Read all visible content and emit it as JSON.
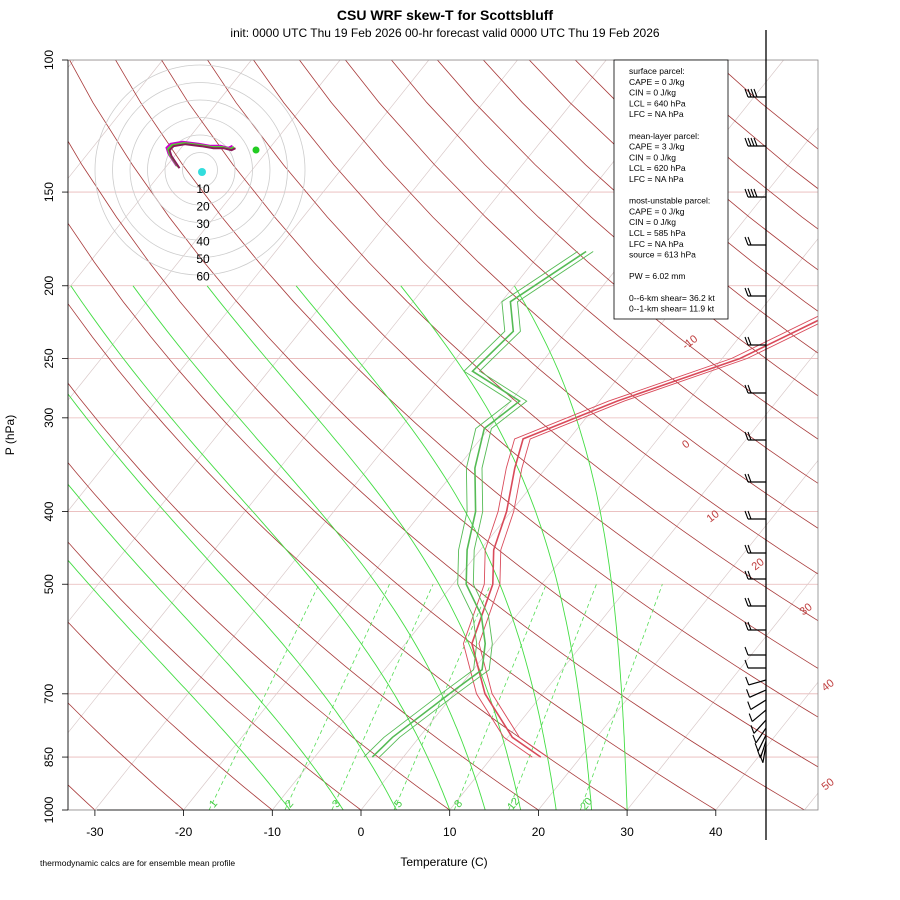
{
  "header": {
    "title": "CSU WRF skew-T for Scottsbluff",
    "subtitle": "init: 0000 UTC Thu 19 Feb 2026     00-hr forecast valid 0000 UTC Thu 19 Feb 2026"
  },
  "axes": {
    "ylabel": "P (hPa)",
    "xlabel": "Temperature (C)",
    "footnote": "thermodynamic calcs are for ensemble mean profile"
  },
  "info_box": {
    "lines": [
      "surface parcel:",
      "CAPE = 0 J/kg",
      "CIN = 0 J/kg",
      "LCL = 640 hPa",
      "LFC = NA hPa",
      "",
      "mean-layer parcel:",
      "CAPE = 3 J/kg",
      "CIN = 0 J/kg",
      "LCL = 620 hPa",
      "LFC = NA hPa",
      "",
      "most-unstable parcel:",
      "CAPE = 0 J/kg",
      "CIN = 0 J/kg",
      "LCL = 585 hPa",
      "LFC = NA hPa",
      "source = 613 hPa",
      "",
      "PW =  6.02 mm",
      "",
      "0--6-km shear= 36.2 kt",
      "0--1-km shear= 11.9 kt"
    ]
  },
  "chart_data": {
    "type": "line",
    "title": "CSU WRF skew-T for Scottsbluff",
    "xlabel": "Temperature (C)",
    "ylabel": "P (hPa)",
    "ylog": true,
    "ylim": [
      1000,
      100
    ],
    "xlim": [
      -33,
      45
    ],
    "xticks": [
      -30,
      -20,
      -10,
      0,
      10,
      20,
      30,
      40
    ],
    "yticks": [
      1000,
      850,
      700,
      500,
      400,
      300,
      250,
      200,
      150,
      100
    ],
    "isotherm_labels": [
      "-10",
      "0",
      "10",
      "20",
      "30",
      "40",
      "50"
    ],
    "mixing_ratio_labels": [
      "1",
      "2",
      "3",
      "5",
      "8",
      "12",
      "20"
    ],
    "hodograph_rings": [
      "10",
      "20",
      "30",
      "40",
      "50",
      "60"
    ],
    "series": [
      {
        "color": "#d94a5a",
        "role": "temperature",
        "points": [
          [
            850,
            15.5
          ],
          [
            800,
            10.5
          ],
          [
            700,
            3.5
          ],
          [
            600,
            -2.5
          ],
          [
            500,
            -5.5
          ],
          [
            450,
            -8.5
          ],
          [
            400,
            -10.5
          ],
          [
            350,
            -13.5
          ],
          [
            320,
            -15.2
          ],
          [
            285,
            -8.0
          ],
          [
            250,
            2.0
          ],
          [
            210,
            10.0
          ],
          [
            170,
            17.0
          ],
          [
            150,
            20.0
          ],
          [
            130,
            23.5
          ],
          [
            115,
            26.5
          ]
        ]
      },
      {
        "color": "#55bb55",
        "role": "dewpoint",
        "points": [
          [
            850,
            -3.5
          ],
          [
            800,
            -3.0
          ],
          [
            700,
            -0.5
          ],
          [
            650,
            1.0
          ],
          [
            600,
            -1.0
          ],
          [
            550,
            -4.0
          ],
          [
            500,
            -8.5
          ],
          [
            450,
            -11.5
          ],
          [
            400,
            -14.0
          ],
          [
            350,
            -18.0
          ],
          [
            310,
            -20.5
          ],
          [
            285,
            -19.0
          ],
          [
            260,
            -27.0
          ],
          [
            230,
            -26.0
          ],
          [
            210,
            -29.0
          ],
          [
            180,
            -25.0
          ]
        ]
      }
    ]
  }
}
